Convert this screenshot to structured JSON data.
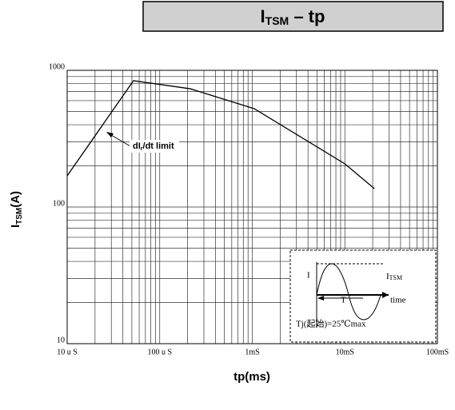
{
  "chart_data": {
    "type": "line",
    "title": {
      "main": "I",
      "sub": "TSM",
      "rest": " – tp"
    },
    "y_label": {
      "main": "I",
      "sub": "TSM",
      "rest": "(A)"
    },
    "x_label": "tp(ms)",
    "x": [
      0.01,
      0.052,
      0.214,
      1.05,
      10,
      20.9
    ],
    "series": [
      {
        "color": "#000000",
        "values": [
          169,
          840,
          733,
          524,
          207,
          136
        ]
      }
    ],
    "xlim": [
      0.01,
      100
    ],
    "ylim": [
      10,
      1000
    ],
    "xticks": [
      {
        "value": 0.01,
        "label": "10 u S"
      },
      {
        "value": 0.1,
        "label": "100 u S"
      },
      {
        "value": 1,
        "label": "1mS"
      },
      {
        "value": 10,
        "label": "10mS"
      },
      {
        "value": 100,
        "label": "100mS"
      }
    ],
    "yticks": [
      10,
      100,
      1000
    ],
    "log_x": true,
    "log_y": true,
    "grid": true,
    "minor_grid": true,
    "annotation": {
      "main": "dI",
      "sub": "r",
      "rest": "/dt limit"
    },
    "inset": {
      "i_label": "I",
      "itsm_main": "I",
      "itsm_sub": "TSM",
      "period": "T",
      "time": "time",
      "condition": "Tj(起始)=25℃max"
    }
  }
}
